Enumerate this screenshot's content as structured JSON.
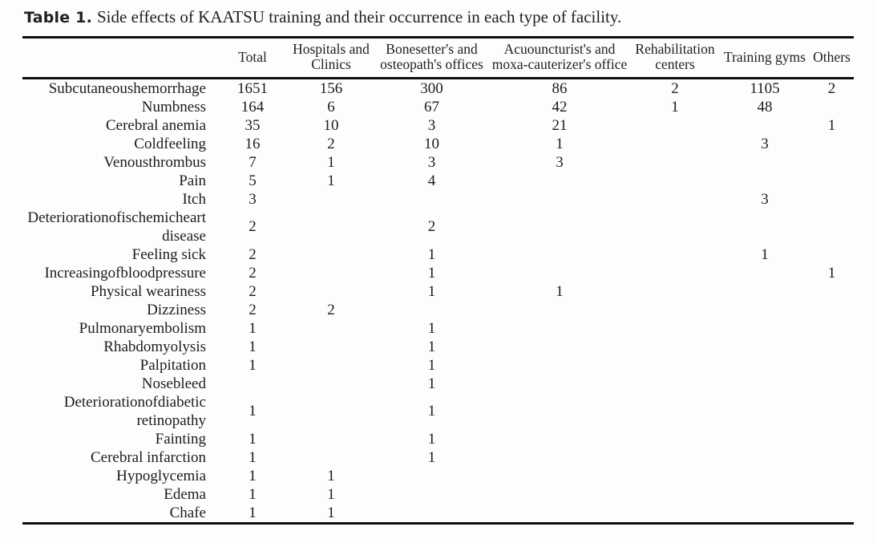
{
  "caption": {
    "label": "Table 1.",
    "text": "Side effects of KAATSU training and their occurrence in each type of facility."
  },
  "table": {
    "columns": [
      "",
      "Total",
      "Hospitals and Clinics",
      "Bonesetter's and osteopath's offices",
      "Acuouncturist's and moxa-cauterizer's office",
      "Rehabilitation centers",
      "Training gyms",
      "Others"
    ],
    "rows": [
      {
        "label": "Subcutaneoushemorrhage",
        "values": [
          "1651",
          "156",
          "300",
          "86",
          "2",
          "1105",
          "2"
        ]
      },
      {
        "label": "Numbness",
        "values": [
          "164",
          "6",
          "67",
          "42",
          "1",
          "48",
          ""
        ]
      },
      {
        "label": "Cerebral anemia",
        "values": [
          "35",
          "10",
          "3",
          "21",
          "",
          "",
          "1"
        ]
      },
      {
        "label": "Coldfeeling",
        "values": [
          "16",
          "2",
          "10",
          "1",
          "",
          "3",
          ""
        ]
      },
      {
        "label": "Venousthrombus",
        "values": [
          "7",
          "1",
          "3",
          "3",
          "",
          "",
          ""
        ]
      },
      {
        "label": "Pain",
        "values": [
          "5",
          "1",
          "4",
          "",
          "",
          "",
          ""
        ]
      },
      {
        "label": "Itch",
        "values": [
          "3",
          "",
          "",
          "",
          "",
          "3",
          ""
        ]
      },
      {
        "label": "Deteriorationofischemicheart disease",
        "values": [
          "2",
          "",
          "2",
          "",
          "",
          "",
          ""
        ]
      },
      {
        "label": "Feeling sick",
        "values": [
          "2",
          "",
          "1",
          "",
          "",
          "1",
          ""
        ]
      },
      {
        "label": "Increasingofbloodpressure",
        "values": [
          "2",
          "",
          "1",
          "",
          "",
          "",
          "1"
        ]
      },
      {
        "label": "Physical weariness",
        "values": [
          "2",
          "",
          "1",
          "1",
          "",
          "",
          ""
        ]
      },
      {
        "label": "Dizziness",
        "values": [
          "2",
          "2",
          "",
          "",
          "",
          "",
          ""
        ]
      },
      {
        "label": "Pulmonaryembolism",
        "values": [
          "1",
          "",
          "1",
          "",
          "",
          "",
          ""
        ]
      },
      {
        "label": "Rhabdomyolysis",
        "values": [
          "1",
          "",
          "1",
          "",
          "",
          "",
          ""
        ]
      },
      {
        "label": "Palpitation",
        "values": [
          "1",
          "",
          "1",
          "",
          "",
          "",
          ""
        ]
      },
      {
        "label": "Nosebleed",
        "values": [
          "",
          "",
          "1",
          "",
          "",
          "",
          ""
        ]
      },
      {
        "label": "Deteriorationofdiabetic retinopathy",
        "values": [
          "1",
          "",
          "1",
          "",
          "",
          "",
          ""
        ]
      },
      {
        "label": "Fainting",
        "values": [
          "1",
          "",
          "1",
          "",
          "",
          "",
          ""
        ]
      },
      {
        "label": "Cerebral infarction",
        "values": [
          "1",
          "",
          "1",
          "",
          "",
          "",
          ""
        ]
      },
      {
        "label": "Hypoglycemia",
        "values": [
          "1",
          "1",
          "",
          "",
          "",
          "",
          ""
        ]
      },
      {
        "label": "Edema",
        "values": [
          "1",
          "1",
          "",
          "",
          "",
          "",
          ""
        ]
      },
      {
        "label": "Chafe",
        "values": [
          "1",
          "1",
          "",
          "",
          "",
          "",
          ""
        ]
      }
    ]
  }
}
